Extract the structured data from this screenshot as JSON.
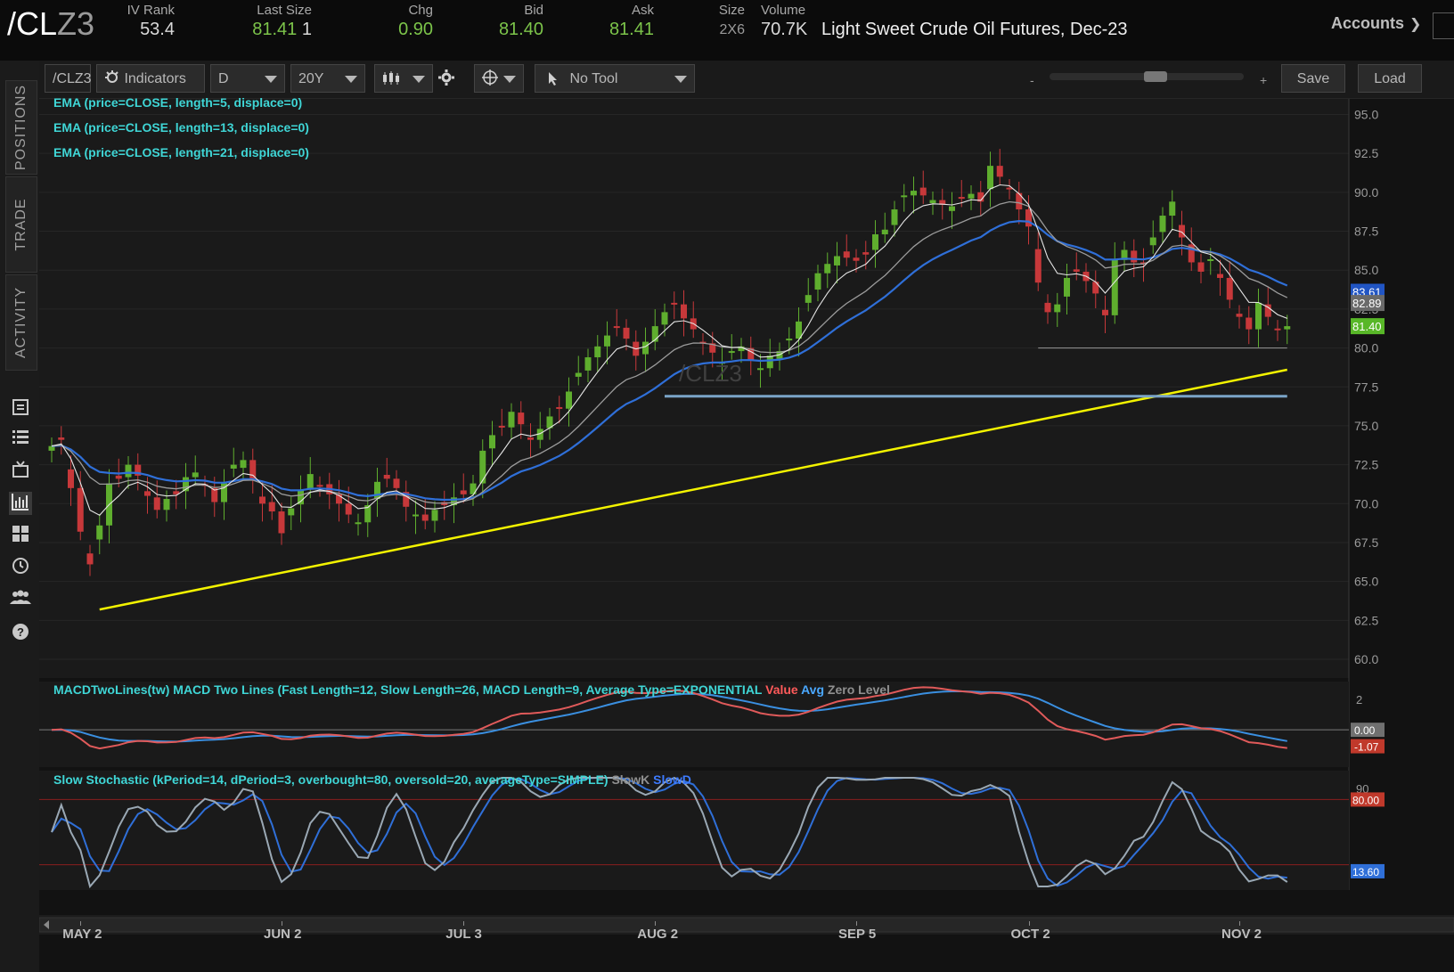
{
  "quote": {
    "symbol": "/CL",
    "symbol_suffix": "Z3",
    "fields": [
      {
        "label": "IV Rank",
        "value": "53.4",
        "color": "#d9d9d9"
      },
      {
        "label": "Last Size",
        "value": "81.41",
        "extra": "1",
        "color": "#7cc44a"
      },
      {
        "label": "Chg",
        "value": "0.90",
        "color": "#7cc44a"
      },
      {
        "label": "Bid",
        "value": "81.40",
        "color": "#7cc44a"
      },
      {
        "label": "Ask",
        "value": "81.41",
        "color": "#7cc44a"
      },
      {
        "label": "Size",
        "value": "2X6",
        "color": "#9a9a9a"
      },
      {
        "label": "Volume",
        "value": "70.7K",
        "color": "#d9d9d9"
      }
    ],
    "description": "Light Sweet Crude Oil Futures, Dec-23",
    "accounts_label": "Accounts"
  },
  "sidebar": {
    "tabs": [
      "POSITIONS",
      "TRADE",
      "ACTIVITY"
    ],
    "icons": [
      "monitor-icon",
      "list-icon",
      "tv-icon",
      "chart-icon",
      "grid-icon",
      "clock-icon",
      "people-icon",
      "help-icon"
    ]
  },
  "toolbar": {
    "symbol_field": "/CLZ3",
    "indicators_label": "Indicators",
    "aggregation": "D",
    "timeframe": "20Y",
    "tool_label": "No Tool",
    "zoom_minus": "-",
    "zoom_plus": "+",
    "save_label": "Save",
    "load_label": "Load"
  },
  "studies": {
    "ema": [
      "EMA (price=CLOSE, length=5, displace=0)",
      "EMA (price=CLOSE, length=13, displace=0)",
      "EMA (price=CLOSE, length=21, displace=0)"
    ],
    "watermark": "/CLZ3",
    "macd": {
      "title": "MACDTwoLines(tw) MACD Two Lines (Fast Length=12, Slow Length=26, MACD Length=9, Average Type=EXPONENTIAL",
      "value_label": "Value",
      "avg_label": "Avg",
      "zero_label": "Zero Level"
    },
    "stoch": {
      "title": "Slow Stochastic (kPeriod=14, dPeriod=3, overbought=80, oversold=20, averageType=SIMPLE)",
      "k_label": "SlowK",
      "d_label": "SlowD"
    }
  },
  "chart_data": {
    "type": "candlestick",
    "price_axis": {
      "ticks": [
        95.0,
        92.5,
        90.0,
        87.5,
        85.0,
        82.5,
        80.0,
        77.5,
        75.0,
        72.5,
        70.0,
        67.5,
        65.0,
        62.5,
        60.0
      ],
      "ylim": [
        58.8,
        96.0
      ]
    },
    "x_labels": [
      {
        "label": "MAY 2",
        "index": 3
      },
      {
        "label": "JUN 2",
        "index": 24
      },
      {
        "label": "JUL 3",
        "index": 43
      },
      {
        "label": "AUG 2",
        "index": 63
      },
      {
        "label": "SEP 5",
        "index": 84
      },
      {
        "label": "OCT 2",
        "index": 102
      },
      {
        "label": "NOV 2",
        "index": 124
      }
    ],
    "closes": [
      73.7,
      74.1,
      71.0,
      68.2,
      66.1,
      68.6,
      71.3,
      71.6,
      72.5,
      71.8,
      70.5,
      69.6,
      70.3,
      70.6,
      71.7,
      72.0,
      71.2,
      70.1,
      71.3,
      72.5,
      72.8,
      71.6,
      70.0,
      69.5,
      68.1,
      69.7,
      70.9,
      71.9,
      71.2,
      70.6,
      70.0,
      69.3,
      68.8,
      69.9,
      71.4,
      71.6,
      71.0,
      69.8,
      69.3,
      68.9,
      69.6,
      69.9,
      70.4,
      70.6,
      71.3,
      73.4,
      74.4,
      74.9,
      75.9,
      75.1,
      74.1,
      74.8,
      75.6,
      76.1,
      77.2,
      78.4,
      79.4,
      80.1,
      80.8,
      81.3,
      80.6,
      79.5,
      80.4,
      81.4,
      82.3,
      82.8,
      81.9,
      81.2,
      80.3,
      79.7,
      79.1,
      79.8,
      80.1,
      79.2,
      78.7,
      79.5,
      79.8,
      80.6,
      81.7,
      83.4,
      84.8,
      85.4,
      85.9,
      85.8,
      85.6,
      86.0,
      87.3,
      87.6,
      88.9,
      89.8,
      90.1,
      89.8,
      89.5,
      89.2,
      89.1,
      89.6,
      89.9,
      89.4,
      91.7,
      91.0,
      90.3,
      88.9,
      87.8,
      84.2,
      82.3,
      82.8,
      84.5,
      84.9,
      84.3,
      83.5,
      82.1,
      85.7,
      86.3,
      85.5,
      85.4,
      87.1,
      88.5,
      89.4,
      87.1,
      85.5,
      84.9,
      85.7,
      84.5,
      83.1,
      82.0,
      81.2,
      82.9,
      82.0,
      81.2,
      81.4
    ],
    "ema_colors": {
      "ema5": "#e6e6e6",
      "ema13": "#9b9b9b",
      "ema21": "#2f6fd8"
    },
    "last_labels": [
      {
        "value": "83.61",
        "bg": "#2155c4"
      },
      {
        "value": "82.89",
        "bg": "#6a6a6a"
      },
      {
        "value": "81.40",
        "bg": "#58b728"
      }
    ],
    "trendline": {
      "from_index": 5,
      "from_price": 63.2,
      "to_index": 129,
      "to_price": 78.6,
      "color": "#f3f300"
    },
    "support_lines": [
      {
        "from_index": 64,
        "to_index": 129,
        "price": 76.9,
        "color": "#7aa4c8"
      },
      {
        "from_index": 103,
        "to_index": 129,
        "price": 80.0,
        "color": "#8a8a8a"
      }
    ],
    "macd_axis": {
      "ticks": [
        2,
        0.0
      ],
      "last_value": "0.00",
      "last_avg": "-1.07"
    },
    "stoch_axis": {
      "ticks": [
        90
      ],
      "overbought": 80,
      "oversold": 20,
      "last_k": "80.00",
      "last_d": "13.60"
    }
  }
}
